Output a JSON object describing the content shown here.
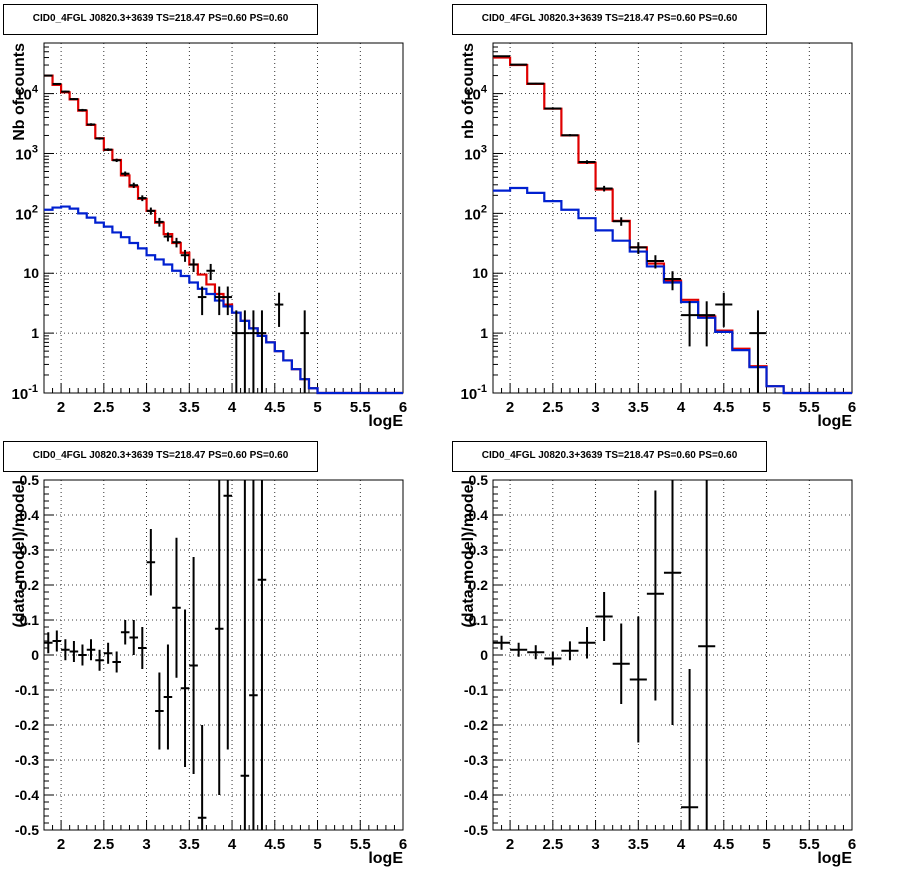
{
  "chart_data": [
    {
      "type": "line",
      "title": "CID0_4FGL J0820.3+3639 TS=218.47 PS=0.60 PS=0.60",
      "xlabel": "logE",
      "ylabel": "Nb of counts",
      "xlim": [
        1.8,
        6.0
      ],
      "ylim": [
        0.1,
        70000
      ],
      "yscale": "log",
      "grid": true,
      "x_ticks": [
        "2",
        "2.5",
        "3",
        "3.5",
        "4",
        "4.5",
        "5",
        "5.5",
        "6"
      ],
      "y_ticks": [
        "10^-1",
        "1",
        "10",
        "10^2",
        "10^3",
        "10^4"
      ],
      "bin_edges": [
        1.8,
        1.9,
        2.0,
        2.1,
        2.2,
        2.3,
        2.4,
        2.5,
        2.6,
        2.7,
        2.8,
        2.9,
        3.0,
        3.1,
        3.2,
        3.3,
        3.4,
        3.5,
        3.6,
        3.7,
        3.8,
        3.9,
        4.0,
        4.1,
        4.2,
        4.3,
        4.4,
        4.5,
        4.6,
        4.7,
        4.8,
        4.9,
        5.0,
        5.1,
        5.2,
        5.3,
        5.4,
        5.5,
        5.6,
        5.7,
        5.8,
        5.9,
        6.0
      ],
      "series": [
        {
          "values": [
            20000,
            14000,
            10500,
            8000,
            5200,
            3000,
            1800,
            1150,
            780,
            430,
            280,
            175,
            110,
            70,
            45,
            32,
            22,
            14,
            9.5,
            6.5,
            4.5,
            3.0,
            2.2,
            1.6,
            1.2,
            0.9,
            0.7,
            0.5,
            0.35,
            0.25,
            0.17,
            0.12,
            0.1,
            0.1,
            0.1,
            0.1,
            0.1,
            0.1,
            0.1,
            0.1,
            0.1,
            0.1
          ],
          "color": "#e00000"
        },
        {
          "values": [
            115,
            125,
            130,
            120,
            100,
            85,
            70,
            60,
            48,
            40,
            32,
            26,
            20,
            17,
            14,
            11,
            9,
            7,
            5.5,
            4.5,
            3.5,
            2.8,
            2.2,
            1.6,
            1.2,
            0.9,
            0.7,
            0.5,
            0.35,
            0.25,
            0.17,
            0.12,
            0.1,
            0.1,
            0.1,
            0.1,
            0.1,
            0.1,
            0.1,
            0.1,
            0.1,
            0.1
          ],
          "color": "#0020d0"
        }
      ],
      "data_points": [
        {
          "x": 1.85,
          "y": 20000,
          "lo": 19500,
          "hi": 20500
        },
        {
          "x": 1.95,
          "y": 14500,
          "lo": 14000,
          "hi": 15000
        },
        {
          "x": 2.05,
          "y": 10800,
          "lo": 10400,
          "hi": 11200
        },
        {
          "x": 2.15,
          "y": 8100,
          "lo": 7800,
          "hi": 8400
        },
        {
          "x": 2.25,
          "y": 5300,
          "lo": 5050,
          "hi": 5550
        },
        {
          "x": 2.35,
          "y": 3050,
          "lo": 2900,
          "hi": 3200
        },
        {
          "x": 2.45,
          "y": 1780,
          "lo": 1700,
          "hi": 1860
        },
        {
          "x": 2.55,
          "y": 1160,
          "lo": 1100,
          "hi": 1220
        },
        {
          "x": 2.65,
          "y": 770,
          "lo": 720,
          "hi": 820
        },
        {
          "x": 2.75,
          "y": 460,
          "lo": 420,
          "hi": 500
        },
        {
          "x": 2.85,
          "y": 295,
          "lo": 265,
          "hi": 325
        },
        {
          "x": 2.95,
          "y": 180,
          "lo": 160,
          "hi": 200
        },
        {
          "x": 3.05,
          "y": 110,
          "lo": 95,
          "hi": 125
        },
        {
          "x": 3.15,
          "y": 72,
          "lo": 60,
          "hi": 84
        },
        {
          "x": 3.25,
          "y": 41,
          "lo": 34,
          "hi": 48
        },
        {
          "x": 3.35,
          "y": 33,
          "lo": 27,
          "hi": 39
        },
        {
          "x": 3.45,
          "y": 20,
          "lo": 15.5,
          "hi": 24.5
        },
        {
          "x": 3.55,
          "y": 14,
          "lo": 10.5,
          "hi": 17.5
        },
        {
          "x": 3.65,
          "y": 4,
          "lo": 2,
          "hi": 6
        },
        {
          "x": 3.75,
          "y": 11,
          "lo": 7.7,
          "hi": 14.3
        },
        {
          "x": 3.85,
          "y": 4,
          "lo": 2,
          "hi": 6
        },
        {
          "x": 3.95,
          "y": 4,
          "lo": 2,
          "hi": 6
        },
        {
          "x": 4.05,
          "y": 1,
          "lo": 0.1,
          "hi": 2.4
        },
        {
          "x": 4.15,
          "y": 1,
          "lo": 0.1,
          "hi": 2.4
        },
        {
          "x": 4.25,
          "y": 1,
          "lo": 0.1,
          "hi": 2.4
        },
        {
          "x": 4.35,
          "y": 1,
          "lo": 0.1,
          "hi": 2.4
        },
        {
          "x": 4.55,
          "y": 3,
          "lo": 1.27,
          "hi": 4.73
        },
        {
          "x": 4.85,
          "y": 1,
          "lo": 0.1,
          "hi": 2.4
        }
      ]
    },
    {
      "type": "line",
      "title": "CID0_4FGL J0820.3+3639 TS=218.47 PS=0.60 PS=0.60",
      "xlabel": "logE",
      "ylabel": "nb of counts",
      "xlim": [
        1.8,
        6.0
      ],
      "ylim": [
        0.1,
        70000
      ],
      "yscale": "log",
      "grid": true,
      "x_ticks": [
        "2",
        "2.5",
        "3",
        "3.5",
        "4",
        "4.5",
        "5",
        "5.5",
        "6"
      ],
      "y_ticks": [
        "10^-1",
        "1",
        "10",
        "10^2",
        "10^3",
        "10^4"
      ],
      "bin_edges": [
        1.8,
        2.0,
        2.2,
        2.4,
        2.6,
        2.8,
        3.0,
        3.2,
        3.4,
        3.6,
        3.8,
        4.0,
        4.2,
        4.4,
        4.6,
        4.8,
        5.0,
        5.2,
        5.4,
        5.6,
        5.8,
        6.0
      ],
      "series": [
        {
          "values": [
            40000,
            30000,
            14500,
            5600,
            2000,
            700,
            250,
            75,
            27,
            14.5,
            7.5,
            3.6,
            1.9,
            1.1,
            0.55,
            0.28,
            0.13,
            0.1,
            0.1,
            0.1,
            0.1
          ],
          "color": "#e00000"
        },
        {
          "values": [
            240,
            265,
            220,
            160,
            115,
            83,
            52,
            35,
            23,
            13,
            7,
            3.3,
            1.8,
            1.05,
            0.52,
            0.27,
            0.13,
            0.1,
            0.1,
            0.1,
            0.1
          ],
          "color": "#0020d0"
        }
      ],
      "data_points": [
        {
          "x": 1.9,
          "y": 42000,
          "lo": 41500,
          "hi": 42500
        },
        {
          "x": 2.1,
          "y": 30500,
          "lo": 30000,
          "hi": 31000
        },
        {
          "x": 2.3,
          "y": 14700,
          "lo": 14300,
          "hi": 15100
        },
        {
          "x": 2.5,
          "y": 5650,
          "lo": 5400,
          "hi": 5900
        },
        {
          "x": 2.7,
          "y": 2020,
          "lo": 1930,
          "hi": 2110
        },
        {
          "x": 2.9,
          "y": 720,
          "lo": 670,
          "hi": 770
        },
        {
          "x": 3.1,
          "y": 260,
          "lo": 232,
          "hi": 288
        },
        {
          "x": 3.3,
          "y": 74,
          "lo": 62,
          "hi": 86
        },
        {
          "x": 3.5,
          "y": 27,
          "lo": 21,
          "hi": 33
        },
        {
          "x": 3.7,
          "y": 16,
          "lo": 12,
          "hi": 20
        },
        {
          "x": 3.9,
          "y": 8,
          "lo": 5.2,
          "hi": 10.8
        },
        {
          "x": 4.1,
          "y": 2,
          "lo": 0.6,
          "hi": 3.4
        },
        {
          "x": 4.3,
          "y": 2,
          "lo": 0.6,
          "hi": 3.4
        },
        {
          "x": 4.5,
          "y": 3,
          "lo": 1.27,
          "hi": 4.73
        },
        {
          "x": 4.9,
          "y": 1,
          "lo": 0.1,
          "hi": 2.4
        }
      ]
    },
    {
      "type": "scatter",
      "title": "CID0_4FGL J0820.3+3639 TS=218.47 PS=0.60 PS=0.60",
      "xlabel": "logE",
      "ylabel": "(data-model)/model",
      "xlim": [
        1.8,
        6.0
      ],
      "ylim": [
        -0.5,
        0.5
      ],
      "grid": true,
      "x_ticks": [
        "2",
        "2.5",
        "3",
        "3.5",
        "4",
        "4.5",
        "5",
        "5.5",
        "6"
      ],
      "y_ticks": [
        "-0.5",
        "-0.4",
        "-0.3",
        "-0.2",
        "-0.1",
        "0",
        "0.1",
        "0.2",
        "0.3",
        "0.4",
        "0.5"
      ],
      "data_points": [
        {
          "x": 1.85,
          "y": 0.035,
          "lo": 0.005,
          "hi": 0.065,
          "hw": 0.05
        },
        {
          "x": 1.95,
          "y": 0.04,
          "lo": 0.01,
          "hi": 0.07,
          "hw": 0.05
        },
        {
          "x": 2.05,
          "y": 0.015,
          "lo": -0.015,
          "hi": 0.045,
          "hw": 0.05
        },
        {
          "x": 2.15,
          "y": 0.01,
          "lo": -0.02,
          "hi": 0.04,
          "hw": 0.05
        },
        {
          "x": 2.25,
          "y": 0.0,
          "lo": -0.03,
          "hi": 0.03,
          "hw": 0.05
        },
        {
          "x": 2.35,
          "y": 0.015,
          "lo": -0.015,
          "hi": 0.045,
          "hw": 0.05
        },
        {
          "x": 2.45,
          "y": -0.015,
          "lo": -0.045,
          "hi": 0.015,
          "hw": 0.05
        },
        {
          "x": 2.55,
          "y": 0.005,
          "lo": -0.025,
          "hi": 0.035,
          "hw": 0.05
        },
        {
          "x": 2.65,
          "y": -0.02,
          "lo": -0.05,
          "hi": 0.01,
          "hw": 0.05
        },
        {
          "x": 2.75,
          "y": 0.065,
          "lo": 0.03,
          "hi": 0.1,
          "hw": 0.05
        },
        {
          "x": 2.85,
          "y": 0.05,
          "lo": 0.0,
          "hi": 0.1,
          "hw": 0.05
        },
        {
          "x": 2.95,
          "y": 0.02,
          "lo": -0.04,
          "hi": 0.08,
          "hw": 0.05
        },
        {
          "x": 3.05,
          "y": 0.265,
          "lo": 0.17,
          "hi": 0.36,
          "hw": 0.05
        },
        {
          "x": 3.15,
          "y": -0.16,
          "lo": -0.27,
          "hi": -0.05,
          "hw": 0.05
        },
        {
          "x": 3.25,
          "y": -0.12,
          "lo": -0.27,
          "hi": 0.03,
          "hw": 0.05
        },
        {
          "x": 3.35,
          "y": 0.135,
          "lo": -0.065,
          "hi": 0.335,
          "hw": 0.05
        },
        {
          "x": 3.45,
          "y": -0.095,
          "lo": -0.32,
          "hi": 0.13,
          "hw": 0.05
        },
        {
          "x": 3.55,
          "y": -0.03,
          "lo": -0.34,
          "hi": 0.28,
          "hw": 0.05
        },
        {
          "x": 3.65,
          "y": -0.465,
          "lo": -0.5,
          "hi": -0.2,
          "hw": 0.05
        },
        {
          "x": 3.85,
          "y": 0.075,
          "lo": -0.4,
          "hi": 0.5,
          "hw": 0.05
        },
        {
          "x": 3.95,
          "y": 0.455,
          "lo": -0.27,
          "hi": 0.5,
          "hw": 0.05
        },
        {
          "x": 4.15,
          "y": -0.345,
          "lo": -0.5,
          "hi": 0.5,
          "hw": 0.05
        },
        {
          "x": 4.25,
          "y": -0.115,
          "lo": -0.5,
          "hi": 0.5,
          "hw": 0.05
        },
        {
          "x": 4.35,
          "y": 0.215,
          "lo": -0.5,
          "hi": 0.5,
          "hw": 0.05
        }
      ]
    },
    {
      "type": "scatter",
      "title": "CID0_4FGL J0820.3+3639 TS=218.47 PS=0.60 PS=0.60",
      "xlabel": "logE",
      "ylabel": "(data-model)/model",
      "xlim": [
        1.8,
        6.0
      ],
      "ylim": [
        -0.5,
        0.5
      ],
      "grid": true,
      "x_ticks": [
        "2",
        "2.5",
        "3",
        "3.5",
        "4",
        "4.5",
        "5",
        "5.5",
        "6"
      ],
      "y_ticks": [
        "-0.5",
        "-0.4",
        "-0.3",
        "-0.2",
        "-0.1",
        "0",
        "0.1",
        "0.2",
        "0.3",
        "0.4",
        "0.5"
      ],
      "data_points": [
        {
          "x": 1.9,
          "y": 0.035,
          "lo": 0.015,
          "hi": 0.055,
          "hw": 0.1
        },
        {
          "x": 2.1,
          "y": 0.015,
          "lo": -0.005,
          "hi": 0.035,
          "hw": 0.1
        },
        {
          "x": 2.3,
          "y": 0.008,
          "lo": -0.012,
          "hi": 0.028,
          "hw": 0.1
        },
        {
          "x": 2.5,
          "y": -0.01,
          "lo": -0.03,
          "hi": 0.01,
          "hw": 0.1
        },
        {
          "x": 2.7,
          "y": 0.012,
          "lo": -0.015,
          "hi": 0.039,
          "hw": 0.1
        },
        {
          "x": 2.9,
          "y": 0.035,
          "lo": -0.01,
          "hi": 0.08,
          "hw": 0.1
        },
        {
          "x": 3.1,
          "y": 0.11,
          "lo": 0.04,
          "hi": 0.18,
          "hw": 0.1
        },
        {
          "x": 3.3,
          "y": -0.025,
          "lo": -0.14,
          "hi": 0.09,
          "hw": 0.1
        },
        {
          "x": 3.5,
          "y": -0.07,
          "lo": -0.25,
          "hi": 0.11,
          "hw": 0.1
        },
        {
          "x": 3.7,
          "y": 0.175,
          "lo": -0.13,
          "hi": 0.47,
          "hw": 0.1
        },
        {
          "x": 3.9,
          "y": 0.235,
          "lo": -0.2,
          "hi": 0.5,
          "hw": 0.1
        },
        {
          "x": 4.1,
          "y": -0.435,
          "lo": -0.5,
          "hi": -0.04,
          "hw": 0.1
        },
        {
          "x": 4.3,
          "y": 0.025,
          "lo": -0.5,
          "hi": 0.5,
          "hw": 0.1
        }
      ]
    }
  ]
}
